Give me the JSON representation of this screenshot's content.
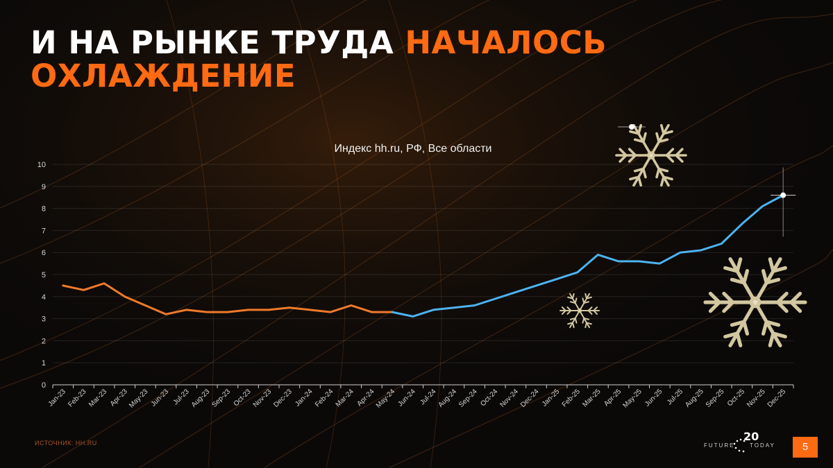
{
  "headline": {
    "part_white": "И НА РЫНКЕ ТРУДА ",
    "part_orange_1": "НАЧАЛОСЬ",
    "part_orange_2": "ОХЛАЖДЕНИЕ"
  },
  "source": "ИСТОЧНИК: HH.RU",
  "logo": {
    "number": "20",
    "left": "FUTURE",
    "right": "TODAY"
  },
  "page_number": "5",
  "colors": {
    "accent": "#ff6a13",
    "series_2023_2024": "#f07a2a",
    "series_2024_2025": "#4db3f0",
    "background": "#0b0908"
  },
  "decorations": [
    "snowflake-icon",
    "snowflake-icon",
    "snowflake-icon"
  ],
  "chart_data": {
    "type": "line",
    "title": "Индекс hh.ru, РФ, Все области",
    "xlabel": "",
    "ylabel": "",
    "ylim": [
      0,
      10
    ],
    "yticks": [
      0,
      1,
      2,
      3,
      4,
      5,
      6,
      7,
      8,
      9,
      10
    ],
    "grid": true,
    "legend": "none",
    "categories": [
      "Jan-23",
      "Feb-23",
      "Mar-23",
      "Apr-23",
      "May-23",
      "Jun-23",
      "Jul-23",
      "Aug-23",
      "Sep-23",
      "Oct-23",
      "Nov-23",
      "Dec-23",
      "Jan-24",
      "Feb-24",
      "Mar-24",
      "Apr-24",
      "May-24",
      "Jun-24",
      "Jul-24",
      "Aug-24",
      "Sep-24",
      "Oct-24",
      "Nov-24",
      "Dec-24",
      "Jan-25",
      "Feb-25",
      "Mar-25",
      "Apr-25",
      "May-25",
      "Jun-25",
      "Jul-25",
      "Aug-25",
      "Sep-25",
      "Oct-25",
      "Nov-25",
      "Dec-25"
    ],
    "values": [
      4.5,
      4.3,
      4.6,
      4.0,
      3.6,
      3.2,
      3.4,
      3.3,
      3.3,
      3.4,
      3.4,
      3.5,
      3.4,
      3.3,
      3.6,
      3.3,
      3.3,
      3.1,
      3.4,
      3.5,
      3.6,
      3.9,
      4.2,
      4.5,
      4.8,
      5.1,
      5.9,
      5.6,
      5.6,
      5.5,
      6.0,
      6.1,
      6.4,
      7.3,
      8.1,
      8.6
    ],
    "segments": [
      {
        "from": "Jan-23",
        "to": "May-24",
        "color": "#f07a2a"
      },
      {
        "from": "May-24",
        "to": "Dec-25",
        "color": "#4db3f0"
      }
    ]
  }
}
